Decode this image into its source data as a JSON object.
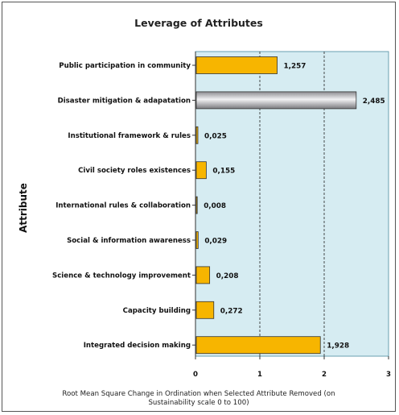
{
  "chart_data": {
    "type": "bar",
    "orientation": "horizontal",
    "title": "Leverage of Attributes",
    "ylabel": "Attribute",
    "xlabel_lines": [
      "Root Mean Square Change in Ordination when Selected Attribute Removed (on",
      "Sustainability scale 0 to 100)"
    ],
    "xlim": [
      0,
      3
    ],
    "xticks": [
      "0",
      "1",
      "2",
      "3"
    ],
    "grid": "vertical dashed",
    "colors": {
      "bar": "#f7b500",
      "bar_border": "#333333",
      "highlight_bar": "#b5b5b8",
      "plot_bg": "#d6ecf2"
    },
    "categories": [
      "Public participation in community",
      "Disaster mitigation & adapatation",
      "Institutional framework & rules",
      "Civil society roles existences",
      "International rules & collaboration",
      "Social & information awareness",
      "Science & technology improvement",
      "Capacity building",
      "Integrated decision making"
    ],
    "values": [
      1.257,
      2.485,
      0.025,
      0.155,
      0.008,
      0.029,
      0.208,
      0.272,
      1.928
    ],
    "value_labels": [
      "1,257",
      "2,485",
      "0,025",
      "0,155",
      "0,008",
      "0,029",
      "0,208",
      "0,272",
      "1,928"
    ],
    "highlight_index": 1
  }
}
